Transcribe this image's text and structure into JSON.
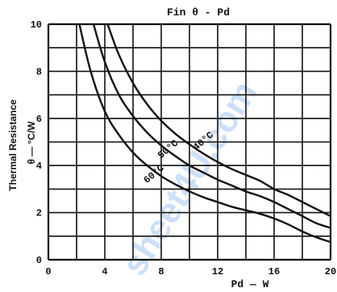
{
  "chart_data": {
    "type": "line",
    "title": "Fin θ - Pd",
    "xlabel": "Pd — W",
    "ylabel_side": "Thermal Resistance",
    "ylabel_axis": "θ — °C/W",
    "xlim": [
      0,
      20
    ],
    "ylim": [
      0,
      10
    ],
    "x_ticks": [
      "0",
      "4",
      "8",
      "12",
      "16",
      "20"
    ],
    "y_ticks": [
      "0",
      "2",
      "4",
      "6",
      "8",
      "10"
    ],
    "grid": true,
    "series": [
      {
        "name": "40°C",
        "x": [
          4.2,
          5,
          6,
          7,
          8,
          9,
          10,
          11,
          12,
          13,
          14,
          15,
          16,
          17,
          18,
          19,
          20
        ],
        "y": [
          10,
          8.7,
          7.5,
          6.6,
          5.9,
          5.35,
          4.9,
          4.5,
          4.15,
          3.85,
          3.6,
          3.35,
          3.0,
          2.75,
          2.45,
          2.15,
          1.85
        ]
      },
      {
        "name": "50°C",
        "x": [
          3.2,
          4,
          5,
          6,
          7,
          8,
          9,
          10,
          11,
          12,
          13,
          14,
          15,
          16,
          17,
          18,
          19,
          20
        ],
        "y": [
          10,
          8.4,
          7.0,
          6.1,
          5.4,
          4.85,
          4.4,
          4.0,
          3.7,
          3.4,
          3.15,
          2.9,
          2.7,
          2.45,
          2.15,
          1.85,
          1.55,
          1.35
        ]
      },
      {
        "name": "60°C",
        "x": [
          2.2,
          3,
          4,
          5,
          6,
          7,
          8,
          9,
          10,
          11,
          12,
          13,
          14,
          15,
          16,
          17,
          18,
          19,
          20
        ],
        "y": [
          10,
          8.0,
          6.3,
          5.3,
          4.55,
          4.0,
          3.55,
          3.2,
          2.9,
          2.65,
          2.45,
          2.25,
          2.1,
          1.95,
          1.75,
          1.5,
          1.2,
          0.95,
          0.75
        ]
      }
    ],
    "curve_labels": [
      {
        "text": "40°C",
        "x": 11.1,
        "y": 4.95
      },
      {
        "text": "50°C",
        "x": 8.6,
        "y": 4.6
      },
      {
        "text": "60°C",
        "x": 7.6,
        "y": 3.55
      }
    ],
    "watermark": "sheet4U.com"
  }
}
